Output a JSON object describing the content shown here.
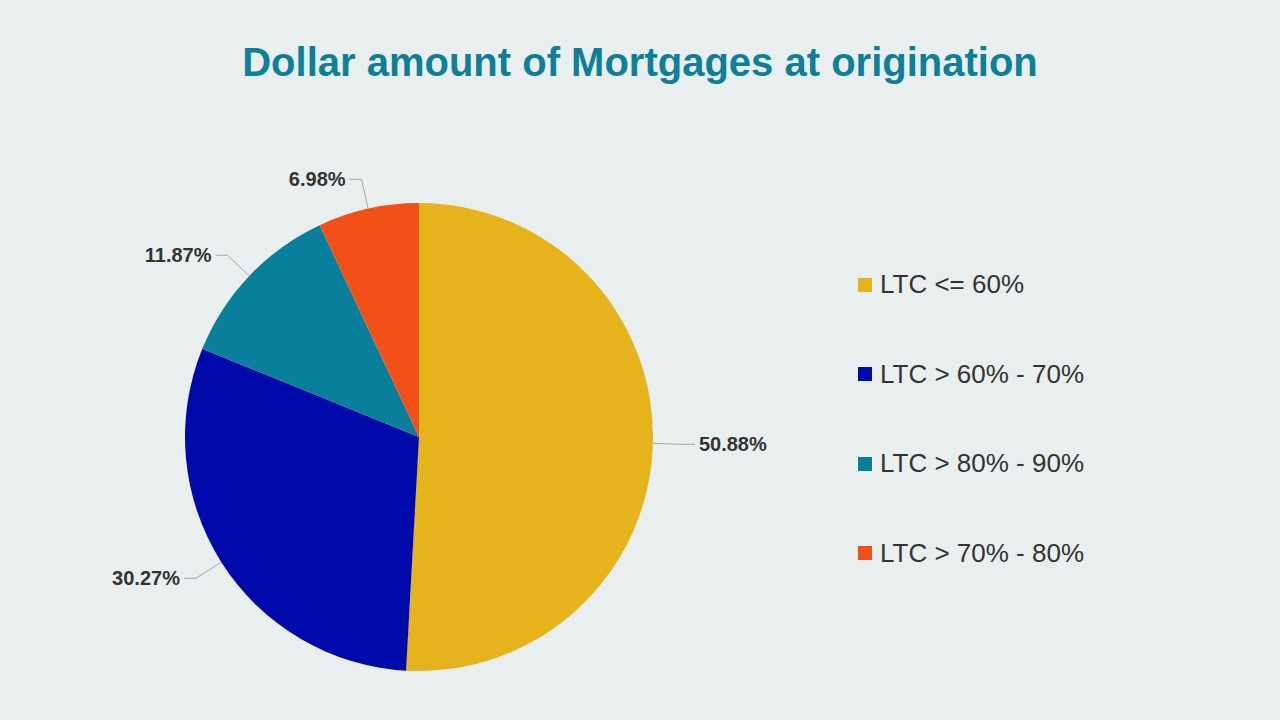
{
  "chart_data": {
    "type": "pie",
    "title": "Dollar amount of Mortgages at origination",
    "categories": [
      "LTC <= 60%",
      "LTC > 60% - 70%",
      "LTC > 80% - 90%",
      "LTC > 70% - 80%"
    ],
    "values": [
      50.88,
      30.27,
      11.87,
      6.98
    ],
    "value_labels": [
      "50.88%",
      "30.27%",
      "11.87%",
      "6.98%"
    ],
    "colors": [
      "#E5B31B",
      "#000AAA",
      "#0A7F9B",
      "#F25019"
    ],
    "data_labels": true,
    "legend": "right"
  }
}
